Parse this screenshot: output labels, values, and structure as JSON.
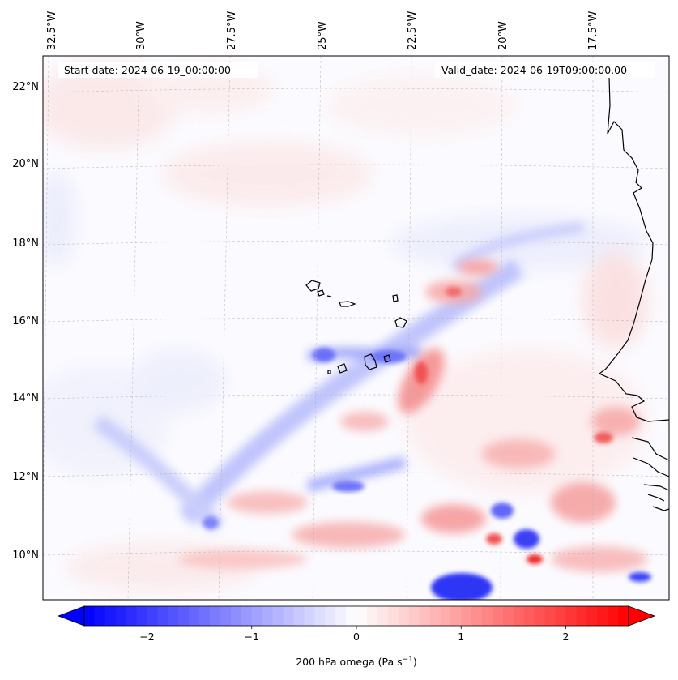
{
  "map": {
    "start_date_label": "Start date: 2024-06-19_00:00:00",
    "valid_date_label": "Valid_date: 2024-06-19T09:00:00.00",
    "lon_labels": [
      "32.5°W",
      "30°W",
      "27.5°W",
      "25°W",
      "22.5°W",
      "20°W",
      "17.5°W"
    ],
    "lat_labels": [
      "22°N",
      "20°N",
      "18°N",
      "16°N",
      "14°N",
      "12°N",
      "10°N"
    ],
    "grid": true,
    "colormap": "bwr",
    "colors": {
      "negative": "#0000ff",
      "zero": "#ffffff",
      "positive": "#ff0000",
      "coast": "#000000"
    }
  },
  "colorbar": {
    "label_main": "200 hPa omega (Pa s",
    "label_exp": "−1",
    "label_close": ")",
    "ticks": [
      "−2",
      "−1",
      "0",
      "1",
      "2"
    ],
    "tick_values": [
      -2,
      -1,
      0,
      1,
      2
    ],
    "range": [
      -2.6,
      2.6
    ],
    "extend": "both"
  }
}
